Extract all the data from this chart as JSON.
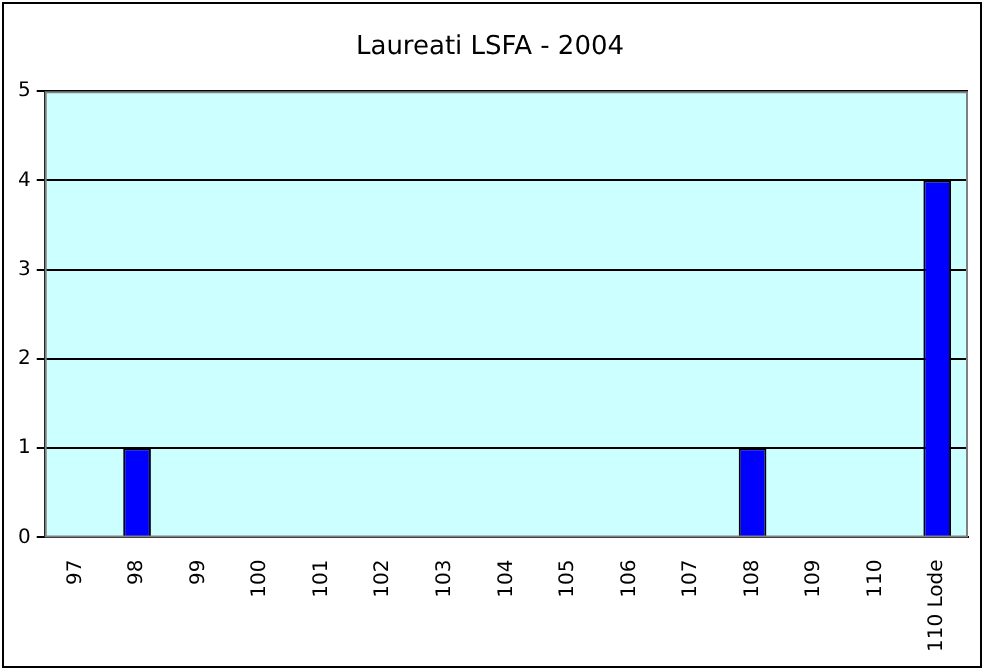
{
  "chart_data": {
    "type": "bar",
    "title": "Laureati LSFA - 2004",
    "categories": [
      "97",
      "98",
      "99",
      "100",
      "101",
      "102",
      "103",
      "104",
      "105",
      "106",
      "107",
      "108",
      "109",
      "110",
      "110 Lode"
    ],
    "values": [
      0,
      1,
      0,
      0,
      0,
      0,
      0,
      0,
      0,
      0,
      0,
      1,
      0,
      0,
      4
    ],
    "color": "#0000ff",
    "ylim": [
      0,
      5
    ],
    "yticks": [
      0,
      1,
      2,
      3,
      4,
      5
    ],
    "grid": "y",
    "legend": false
  }
}
